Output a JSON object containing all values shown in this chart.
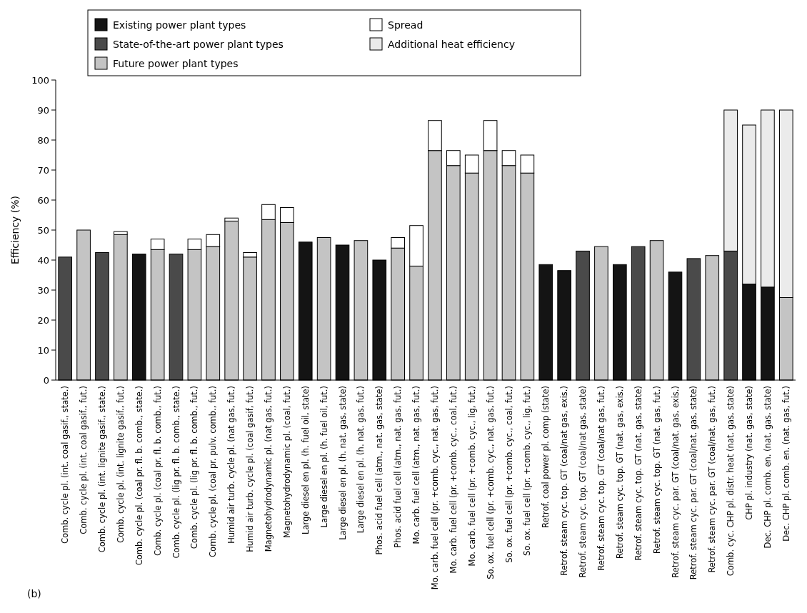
{
  "chart_data": {
    "type": "bar",
    "stacked": true,
    "ylabel": "Efficiency (%)",
    "ylim": [
      0,
      100
    ],
    "yticks": [
      0,
      10,
      20,
      30,
      40,
      50,
      60,
      70,
      80,
      90,
      100
    ],
    "grid": false,
    "legend": "top left",
    "categories": [
      "Comb. cycle pl. (int. coal gasif., state.)",
      "Comb. cycle pl. (int. coal gasif., fut.)",
      "Comb. cycle pl. (int. lignite gasif., state.)",
      "Comb. cycle pl. (int. lignite gasif., fut.)",
      "Comb. cycle pl. (coal pr. fl. b. comb., state.)",
      "Comb. cycle pl. (coal pr. fl. b. comb., fut.)",
      "Comb. cycle pl. (lig pr. fl. b. comb., state.)",
      "Comb. cycle pl. (lig pr. fl. b. comb., fut.)",
      "Comb. cycle pl. (coal pr. pulv. comb., fut.)",
      "Humid air turb. cycle pl. (nat gas, fut.)",
      "Humid air turb. cycle pl. (coal gasif, fut.)",
      "Magnetohydrodynamic pl. (nat gas, fut.)",
      "Magnetohydrodynamic pl. (coal, fut.)",
      "Large diesel en pl. (h. fuel oil, state)",
      "Large diesel en pl. (h. fuel oil, fut.)",
      "Large diesel en pl. (h. nat. gas, state)",
      "Large diesel en pl. (h. nat. gas, fut.)",
      "Phos. acid fuel cell (atm., nat. gas, state)",
      "Phos. acid fuel cell (atm., nat. gas, fut.)",
      "Mo. carb. fuel cell (atm., nat. gas, fut.)",
      "Mo. carb. fuel cell (pr. +comb. cyc., nat. gas, fut.)",
      "Mo. carb. fuel cell (pr. +comb. cyc., coal, fut.)",
      "Mo. carb. fuel cell (pr. +comb. cyc., lig, fut.)",
      "So. ox. fuel cell (pr. +comb. cyc., nat. gas, fut.)",
      "So. ox. fuel cell (pr. +comb. cyc., coal, fut.)",
      "So. ox. fuel cell (pr. +comb. cyc., lig, fut.)",
      "Retrof. coal power pl. comp (state)",
      "Retrof. steam cyc. top. GT (coal/nat gas, exis.)",
      "Retrof. steam cyc. top. GT (coal/nat gas, state)",
      "Retrof. steam cyc. top. GT (coal/nat gas, fut.)",
      "Retrof. steam cyc. top. GT (nat. gas, exis.)",
      "Retrof. steam cyc. top. GT (nat. gas, state)",
      "Retrof. steam cyc. top. GT (nat. gas, fut.)",
      "Retrof. steam cyc. par. GT (coal/nat. gas, exis.)",
      "Retrof. steam cyc. par. GT (coal/nat. gas, state)",
      "Retrof. steam cyc. par. GT (coal/nat. gas, fut.)",
      "Comb. cyc. CHP pl. distr. heat (nat. gas, state)",
      "CHP pl. industry (nat. gas, state)",
      "Dec. CHP pl. comb. en. (nat. gas, state)",
      "Dec. CHP pl. comb. en. (nat. gas, fut.)"
    ],
    "series": [
      {
        "name": "Existing power plant types",
        "color": "#141414",
        "values": [
          null,
          null,
          null,
          null,
          42,
          null,
          null,
          null,
          null,
          null,
          null,
          null,
          null,
          46,
          null,
          45,
          null,
          40,
          null,
          null,
          null,
          null,
          null,
          null,
          null,
          null,
          38.5,
          36.5,
          null,
          null,
          38.5,
          null,
          null,
          36,
          null,
          null,
          null,
          32,
          31,
          null
        ]
      },
      {
        "name": "State-of-the-art power plant types",
        "color": "#4a4a4a",
        "values": [
          41,
          null,
          42.5,
          null,
          null,
          null,
          42,
          null,
          null,
          null,
          null,
          null,
          null,
          null,
          null,
          null,
          null,
          null,
          null,
          null,
          null,
          null,
          null,
          null,
          null,
          null,
          null,
          null,
          43,
          null,
          null,
          44.5,
          null,
          null,
          40.5,
          null,
          43,
          null,
          null,
          null
        ]
      },
      {
        "name": "Future power plant types",
        "color": "#c4c4c4",
        "values": [
          null,
          50,
          null,
          48.5,
          null,
          43.5,
          null,
          43.5,
          44.5,
          53,
          41,
          53.5,
          52.5,
          null,
          47.5,
          null,
          46.5,
          null,
          44,
          38,
          76.5,
          71.5,
          69,
          76.5,
          71.5,
          69,
          null,
          null,
          null,
          44.5,
          null,
          null,
          46.5,
          null,
          null,
          41.5,
          null,
          null,
          null,
          27.5
        ]
      },
      {
        "name": "Spread",
        "color": "#ffffff",
        "values": [
          null,
          null,
          null,
          1,
          null,
          3.5,
          null,
          3.5,
          4,
          1,
          1.5,
          5,
          5,
          null,
          null,
          null,
          null,
          null,
          3.5,
          13.5,
          10,
          5,
          6,
          10,
          5,
          6,
          null,
          null,
          null,
          null,
          null,
          null,
          null,
          null,
          null,
          null,
          null,
          null,
          null,
          null
        ]
      },
      {
        "name": "Additional heat efficiency",
        "color": "#ebebeb",
        "values": [
          null,
          null,
          null,
          null,
          null,
          null,
          null,
          null,
          null,
          null,
          null,
          null,
          null,
          null,
          null,
          null,
          null,
          null,
          null,
          null,
          null,
          null,
          null,
          null,
          null,
          null,
          null,
          null,
          null,
          null,
          null,
          null,
          null,
          null,
          null,
          null,
          47,
          53,
          59,
          62.5
        ]
      }
    ],
    "annotations": [
      "(b)"
    ]
  }
}
